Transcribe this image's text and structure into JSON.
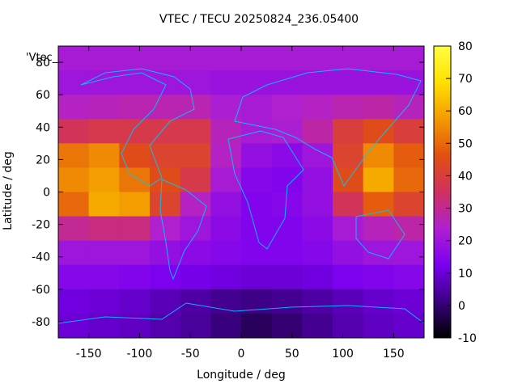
{
  "chart_data": {
    "type": "heatmap",
    "title": "VTEC / TECU 20250824_236.05400",
    "xlabel": "Longitude / deg",
    "ylabel": "Latitude / deg",
    "xlim": [
      -180,
      180
    ],
    "ylim": [
      -90,
      90
    ],
    "x_ticks": [
      -150,
      -100,
      -50,
      0,
      50,
      100,
      150
    ],
    "y_ticks": [
      -80,
      -60,
      -40,
      -20,
      0,
      20,
      40,
      60,
      80
    ],
    "colorbar": {
      "range": [
        -10,
        80
      ],
      "ticks": [
        -10,
        0,
        10,
        20,
        30,
        40,
        50,
        60,
        70,
        80
      ],
      "colors": [
        "#000000",
        "#3a0080",
        "#7a00f0",
        "#b020d0",
        "#d03060",
        "#e25010",
        "#f49a00",
        "#ffe000",
        "#ffff40"
      ]
    },
    "legend": {
      "label": "'Vtec_"
    },
    "grid": false,
    "values": [
      [
        22,
        22,
        22,
        22,
        22,
        22,
        22,
        22,
        22,
        22,
        22,
        22
      ],
      [
        20,
        20,
        20,
        20,
        20,
        19,
        19,
        19,
        19,
        19,
        19,
        19
      ],
      [
        25,
        26,
        27,
        27,
        27,
        23,
        22,
        24,
        25,
        27,
        28,
        26
      ],
      [
        36,
        38,
        38,
        38,
        38,
        26,
        22,
        23,
        28,
        40,
        45,
        40
      ],
      [
        52,
        55,
        45,
        42,
        42,
        25,
        18,
        16,
        20,
        42,
        55,
        48
      ],
      [
        55,
        58,
        52,
        45,
        38,
        22,
        15,
        14,
        18,
        45,
        60,
        50
      ],
      [
        50,
        60,
        58,
        42,
        25,
        18,
        14,
        15,
        18,
        36,
        48,
        42
      ],
      [
        30,
        32,
        32,
        24,
        20,
        16,
        14,
        14,
        16,
        22,
        26,
        28
      ],
      [
        20,
        20,
        20,
        18,
        16,
        15,
        14,
        14,
        15,
        18,
        20,
        20
      ],
      [
        15,
        15,
        14,
        13,
        12,
        11,
        10,
        10,
        11,
        13,
        14,
        15
      ],
      [
        11,
        10,
        9,
        7,
        5,
        3,
        2,
        3,
        5,
        7,
        9,
        10
      ],
      [
        10,
        9,
        8,
        6,
        4,
        1,
        -2,
        0,
        3,
        6,
        8,
        9
      ]
    ],
    "x": [
      -165,
      -135,
      -105,
      -75,
      -45,
      -15,
      15,
      45,
      75,
      105,
      135,
      165
    ],
    "y": [
      82.5,
      67.5,
      52.5,
      37.5,
      22.5,
      7.5,
      -7.5,
      -22.5,
      -37.5,
      -52.5,
      -67.5,
      -82.5
    ]
  }
}
